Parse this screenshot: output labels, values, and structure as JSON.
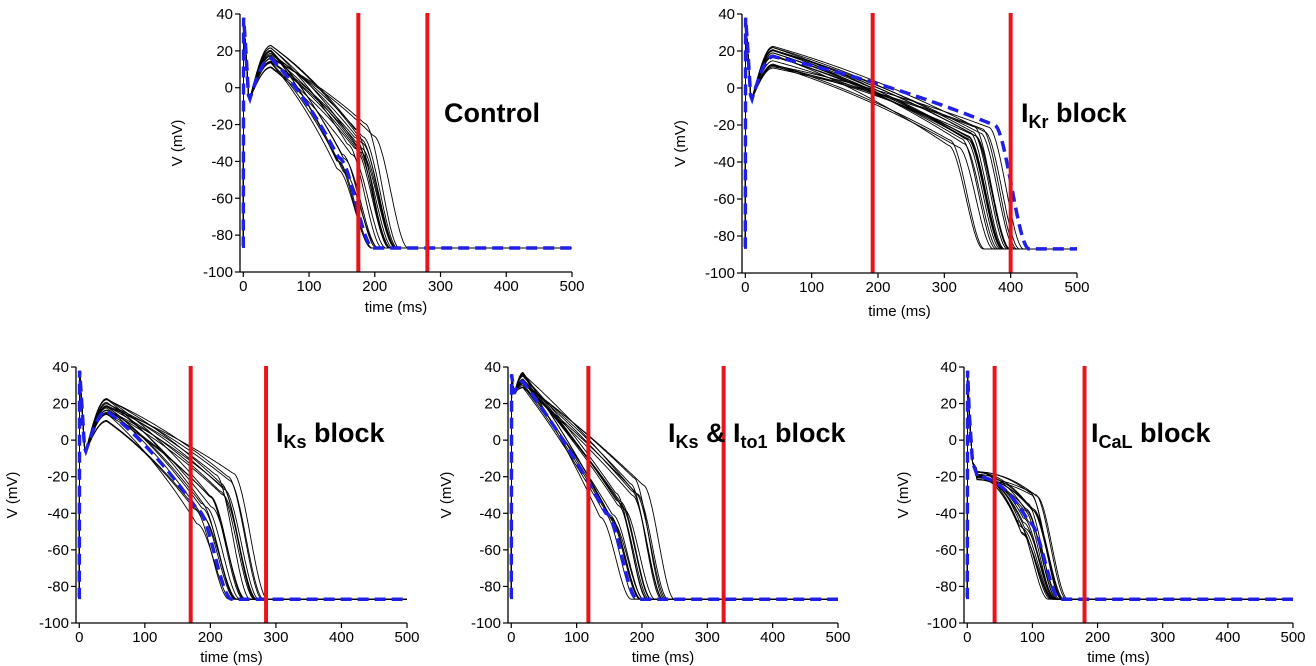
{
  "chart_data": [
    {
      "type": "line",
      "title_parts": [
        {
          "text": "Control",
          "sub": false
        }
      ],
      "xlabel": "time (ms)",
      "ylabel": "V (mV)",
      "xlim": [
        -5,
        500
      ],
      "ylim": [
        -100,
        40
      ],
      "xticks": [
        0,
        100,
        200,
        300,
        400,
        500
      ],
      "yticks": [
        -100,
        -80,
        -60,
        -40,
        -20,
        0,
        20,
        40
      ],
      "markers": [
        175,
        280
      ],
      "model": {
        "shape": "spike-dome",
        "dome_peak": 16,
        "plateau_end": -38,
        "apd": 190
      },
      "population": {
        "dome_peak_range": [
          10,
          23
        ],
        "plateau_end_range": [
          -48,
          -18
        ],
        "apd_range": [
          175,
          255
        ]
      }
    },
    {
      "type": "line",
      "title_parts": [
        {
          "text": "I",
          "sub": false
        },
        {
          "text": "Kr",
          "sub": true
        },
        {
          "text": " block",
          "sub": false
        }
      ],
      "xlabel": "time (ms)",
      "ylabel": "V (mV)",
      "xlim": [
        -5,
        500
      ],
      "ylim": [
        -100,
        40
      ],
      "xticks": [
        0,
        100,
        200,
        300,
        400,
        500
      ],
      "yticks": [
        -100,
        -80,
        -60,
        -40,
        -20,
        0,
        20,
        40
      ],
      "markers": [
        192,
        400
      ],
      "model": {
        "shape": "spike-dome",
        "dome_peak": 17,
        "plateau_end": -20,
        "apd": 420
      },
      "population": {
        "dome_peak_range": [
          10,
          23
        ],
        "plateau_end_range": [
          -32,
          -20
        ],
        "apd_range": [
          345,
          415
        ]
      }
    },
    {
      "type": "line",
      "title_parts": [
        {
          "text": "I",
          "sub": false
        },
        {
          "text": "Ks",
          "sub": true
        },
        {
          "text": " block",
          "sub": false
        }
      ],
      "xlabel": "time (ms)",
      "ylabel": "V (mV)",
      "xlim": [
        -5,
        500
      ],
      "ylim": [
        -100,
        40
      ],
      "xticks": [
        0,
        100,
        200,
        300,
        400,
        500
      ],
      "yticks": [
        -100,
        -80,
        -60,
        -40,
        -20,
        0,
        20,
        40
      ],
      "markers": [
        170,
        285
      ],
      "model": {
        "shape": "spike-dome",
        "dome_peak": 16,
        "plateau_end": -38,
        "apd": 225
      },
      "population": {
        "dome_peak_range": [
          10,
          23
        ],
        "plateau_end_range": [
          -48,
          -15
        ],
        "apd_range": [
          205,
          285
        ]
      }
    },
    {
      "type": "line",
      "title_parts": [
        {
          "text": "I",
          "sub": false
        },
        {
          "text": "Ks",
          "sub": true
        },
        {
          "text": " & I",
          "sub": false
        },
        {
          "text": "to1",
          "sub": true
        },
        {
          "text": " block",
          "sub": false
        }
      ],
      "xlabel": "time (ms)",
      "ylabel": "V (mV)",
      "xlim": [
        -5,
        500
      ],
      "ylim": [
        -100,
        40
      ],
      "xticks": [
        0,
        100,
        200,
        300,
        400,
        500
      ],
      "yticks": [
        -100,
        -80,
        -60,
        -40,
        -20,
        0,
        20,
        40
      ],
      "markers": [
        118,
        325
      ],
      "model": {
        "shape": "no-notch",
        "dome_peak": 32,
        "plateau_end": -40,
        "apd": 185
      },
      "population": {
        "dome_peak_range": [
          28,
          37
        ],
        "plateau_end_range": [
          -50,
          -20
        ],
        "apd_range": [
          170,
          245
        ]
      }
    },
    {
      "type": "line",
      "title_parts": [
        {
          "text": "I",
          "sub": false
        },
        {
          "text": "CaL",
          "sub": true
        },
        {
          "text": " block",
          "sub": false
        }
      ],
      "xlabel": "time (ms)",
      "ylabel": "V (mV)",
      "xlim": [
        -5,
        500
      ],
      "ylim": [
        -100,
        40
      ],
      "xticks": [
        0,
        100,
        200,
        300,
        400,
        500
      ],
      "yticks": [
        -100,
        -80,
        -60,
        -40,
        -20,
        0,
        20,
        40
      ],
      "markers": [
        42,
        180
      ],
      "model": {
        "shape": "low-plateau",
        "dome_peak": -20,
        "plateau_end": -45,
        "apd": 135
      },
      "population": {
        "dome_peak_range": [
          -22,
          -17
        ],
        "plateau_end_range": [
          -55,
          -25
        ],
        "apd_range": [
          110,
          150
        ]
      }
    }
  ],
  "colors": {
    "population": "#000000",
    "model": "#1f1fe6",
    "marker": "#e8141b",
    "axis": "#000000"
  }
}
